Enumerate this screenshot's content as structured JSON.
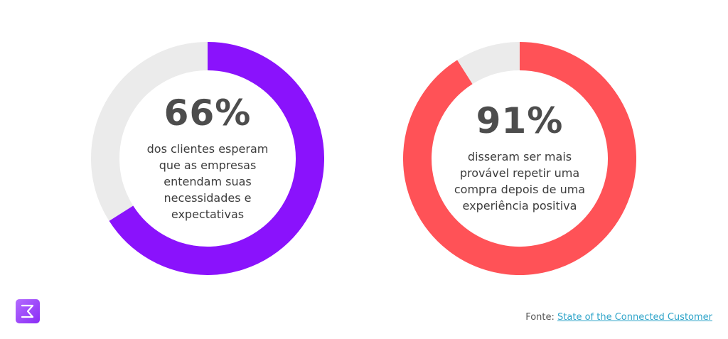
{
  "chart_data": [
    {
      "type": "pie",
      "style": "donut",
      "value": 66,
      "label": "66%",
      "description": "dos clientes esperam que as empresas entendam suas necessidades e expectativas",
      "colors": {
        "filled": "#8a12fc",
        "remainder": "#ebebeb"
      }
    },
    {
      "type": "pie",
      "style": "donut",
      "value": 91,
      "label": "91%",
      "description": "disseram ser mais provável repetir uma compra depois de uma experiência positiva",
      "colors": {
        "filled": "#ff5257",
        "remainder": "#ebebeb"
      }
    }
  ],
  "source": {
    "prefix": "Fonte:",
    "link_text": "State of the Connected Customer"
  },
  "logo": {
    "icon": "brand-logo-icon",
    "color": "#9b4dff"
  }
}
